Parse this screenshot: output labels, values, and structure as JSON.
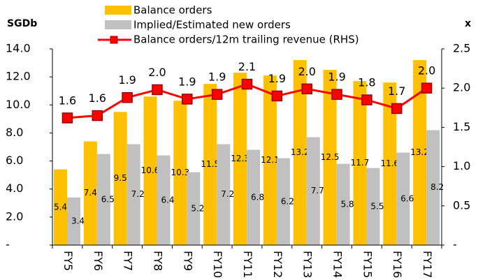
{
  "chart_data": {
    "type": "bar_line",
    "y_label": "SGDb",
    "y2_label": "x",
    "categories": [
      "FY5",
      "FY6",
      "FY7",
      "FY8",
      "FY9",
      "FY10",
      "FY11",
      "FY12",
      "FY13",
      "FY14",
      "FY15",
      "FY16",
      "FY17"
    ],
    "series": [
      {
        "name": "Balance orders",
        "type": "bar",
        "color": "#FFC000",
        "values": [
          5.4,
          7.4,
          9.5,
          10.6,
          10.3,
          11.5,
          12.3,
          12.1,
          13.2,
          12.5,
          11.7,
          11.6,
          13.2
        ]
      },
      {
        "name": "Implied/Estimated new orders",
        "type": "bar",
        "color": "#C0C0C0",
        "values": [
          3.4,
          6.5,
          7.2,
          6.4,
          5.2,
          7.2,
          6.8,
          6.2,
          7.7,
          5.8,
          5.5,
          6.6,
          8.2
        ]
      },
      {
        "name": "Balance orders/12m trailing revenue (RHS)",
        "type": "line",
        "axis": "y2",
        "color": "#FF0000",
        "values": [
          1.62,
          1.65,
          1.88,
          1.98,
          1.86,
          1.92,
          2.05,
          1.9,
          1.99,
          1.92,
          1.85,
          1.74,
          2.0
        ],
        "value_labels": [
          "1.6",
          "1.6",
          "1.9",
          "2.0",
          "1.9",
          "1.9",
          "2.1",
          "1.9",
          "2.0",
          "1.9",
          "1.8",
          "1.7",
          "2.0"
        ]
      }
    ],
    "ylim": [
      0,
      14
    ],
    "yticks": [
      {
        "value": 0,
        "label": "-"
      },
      {
        "value": 2,
        "label": "2.0"
      },
      {
        "value": 4,
        "label": "4.0"
      },
      {
        "value": 6,
        "label": "6.0"
      },
      {
        "value": 8,
        "label": "8.0"
      },
      {
        "value": 10,
        "label": "10.0"
      },
      {
        "value": 12,
        "label": "12.0"
      },
      {
        "value": 14,
        "label": "14.0"
      }
    ],
    "y2lim": [
      0,
      2.5
    ],
    "y2ticks": [
      {
        "value": 0,
        "label": "-"
      },
      0.5,
      {
        "value": 1,
        "label": "1.0"
      },
      1.5,
      {
        "value": 2,
        "label": "2.0"
      },
      2.5
    ]
  }
}
